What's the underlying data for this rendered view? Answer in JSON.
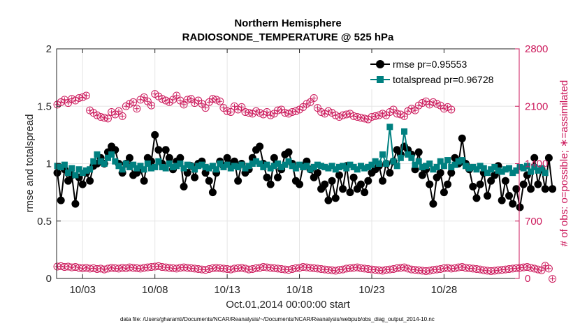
{
  "chart_data": {
    "type": "line",
    "title": "Northern Hemisphere",
    "subtitle": "RADIOSONDE_TEMPERATURE @ 525 hPa",
    "xlabel": "Oct.01,2014 00:00:00 start",
    "ylabel": "rmse and totalspread",
    "ylabel_right": "# of obs: o=possible; ∗=assimilated",
    "footnote": "data file: /Users/gharamti/Documents/NCAR/Reanalysis/~/Documents/NCAR/Reanalysis/webpub/obs_diag_output_2014-10.nc",
    "xlim": [
      1.2,
      33.2
    ],
    "ylim": [
      0,
      2
    ],
    "ylim_right": [
      0,
      2800
    ],
    "x_ticks": [
      3,
      8,
      13,
      18,
      23,
      28
    ],
    "x_tick_labels": [
      "10/03",
      "10/08",
      "10/13",
      "10/18",
      "10/23",
      "10/28"
    ],
    "y_ticks": [
      0,
      0.5,
      1,
      1.5,
      2
    ],
    "y_tick_labels": [
      "0",
      "0.5",
      "1",
      "1.5",
      "2"
    ],
    "y_right_ticks": [
      0,
      700,
      1400,
      2100,
      2800
    ],
    "y_right_tick_labels": [
      "0",
      "700",
      "1400",
      "2100",
      "2800"
    ],
    "grid": true,
    "legend_position": "top-right",
    "colors": {
      "rmse": "#000000",
      "totalspread": "#008080",
      "obs": "#cc1a5c",
      "grid": "#e5e5e5",
      "axis": "#262626"
    },
    "x_start": 1.25,
    "x_step": 0.25,
    "series": [
      {
        "name": "rmse pr=0.95553",
        "axis": "left",
        "values": [
          0.92,
          0.68,
          0.95,
          0.85,
          0.9,
          0.65,
          0.88,
          0.82,
          0.92,
          0.85,
          0.98,
          1.0,
          1.05,
          1.0,
          1.1,
          1.15,
          1.12,
          1.0,
          0.92,
          1.0,
          1.05,
          0.9,
          0.92,
          0.95,
          0.85,
          1.05,
          1.02,
          1.25,
          1.12,
          1.0,
          1.12,
          1.05,
          0.95,
          1.02,
          1.05,
          0.8,
          0.92,
          0.98,
          0.88,
          1.0,
          1.02,
          0.92,
          0.85,
          0.75,
          0.92,
          1.02,
          0.98,
          1.05,
          1.0,
          1.02,
          0.85,
          1.0,
          0.92,
          0.95,
          1.05,
          1.12,
          1.15,
          1.0,
          0.88,
          0.82,
          1.05,
          0.88,
          0.95,
          1.08,
          1.1,
          1.0,
          0.85,
          0.82,
          0.98,
          1.02,
          0.95,
          0.88,
          0.92,
          0.78,
          0.82,
          0.68,
          0.85,
          0.7,
          0.9,
          0.78,
          0.98,
          0.75,
          0.88,
          0.78,
          0.82,
          0.75,
          0.85,
          0.92,
          0.95,
          0.98,
          0.85,
          1.0,
          0.92,
          1.02,
          1.12,
          1.08,
          1.15,
          1.12,
          1.08,
          0.95,
          1.1,
          0.9,
          0.95,
          0.82,
          0.65,
          0.88,
          0.92,
          0.75,
          0.82,
          0.92,
          1.05,
          1.0,
          1.22,
          1.0,
          0.95,
          0.8,
          0.7,
          0.82,
          0.92,
          0.72,
          0.85,
          0.9,
          0.98,
          0.68,
          0.85,
          0.72,
          0.65,
          0.78,
          0.62,
          0.82,
          0.9,
          0.78,
          1.05,
          0.82,
          0.95,
          0.78,
          1.05,
          0.78
        ]
      },
      {
        "name": "totalspread pr=0.96728",
        "axis": "left",
        "values": [
          0.98,
          0.97,
          0.99,
          0.92,
          0.96,
          0.9,
          0.95,
          0.92,
          0.94,
          0.95,
          1.02,
          1.08,
          1.02,
          1.0,
          1.05,
          1.08,
          1.02,
          0.98,
          0.95,
          1.0,
          0.97,
          0.99,
          0.96,
          0.98,
          0.95,
          1.0,
          0.96,
          0.97,
          1.02,
          0.97,
          0.96,
          1.0,
          0.97,
          0.98,
          1.0,
          0.96,
          0.99,
          0.98,
          0.95,
          0.98,
          0.99,
          0.97,
          0.96,
          0.98,
          0.95,
          1.0,
          0.97,
          0.99,
          0.96,
          0.98,
          0.97,
          0.99,
          0.96,
          0.98,
          1.0,
          1.02,
          1.0,
          0.97,
          0.99,
          0.96,
          0.98,
          1.0,
          0.97,
          0.99,
          1.02,
          0.98,
          0.96,
          0.99,
          0.97,
          0.98,
          0.95,
          0.97,
          0.99,
          0.98,
          0.97,
          0.96,
          0.98,
          0.95,
          0.97,
          0.98,
          0.96,
          0.99,
          0.97,
          0.95,
          0.98,
          0.96,
          0.97,
          0.99,
          1.02,
          1.0,
          1.08,
          1.0,
          1.32,
          1.02,
          0.98,
          1.05,
          1.28,
          1.08,
          1.05,
          0.99,
          1.02,
          0.97,
          0.98,
          1.0,
          0.95,
          0.97,
          1.02,
          0.98,
          1.03,
          0.97,
          0.99,
          1.02,
          1.03,
          0.98,
          0.96,
          0.97,
          0.95,
          0.98,
          0.96,
          0.92,
          0.95,
          0.97,
          0.94,
          0.93,
          0.95,
          0.96,
          0.92,
          0.94,
          0.97,
          0.96,
          0.98,
          0.93,
          0.97,
          0.94,
          0.96,
          0.92
        ]
      },
      {
        "name": "possible (o)",
        "axis": "right",
        "values": [
          2120,
          2150,
          2180,
          2140,
          2190,
          2170,
          2200,
          2210,
          2230,
          2050,
          2020,
          1990,
          1970,
          1960,
          1950,
          2030,
          2000,
          2040,
          1980,
          2100,
          2130,
          2150,
          2070,
          2180,
          2210,
          2160,
          2110,
          2250,
          2220,
          2190,
          2170,
          2150,
          2180,
          2230,
          2170,
          2120,
          2180,
          2190,
          2140,
          2170,
          2130,
          2080,
          2150,
          2190,
          2180,
          2160,
          2080,
          2040,
          2030,
          2100,
          2060,
          2090,
          2030,
          2020,
          2010,
          2040,
          2020,
          2000,
          2030,
          1990,
          2010,
          2050,
          2060,
          2020,
          2010,
          2030,
          2040,
          2060,
          2090,
          2130,
          2150,
          2200,
          2080,
          2030,
          2010,
          2040,
          2020,
          1990,
          1970,
          1990,
          2000,
          2010,
          1980,
          1970,
          1960,
          1950,
          1940,
          1970,
          1980,
          1990,
          2010,
          1990,
          2030,
          2060,
          2010,
          2000,
          1980,
          2040,
          2070,
          2050,
          2110,
          2140,
          2160,
          2120,
          2150,
          2130,
          2110,
          2070,
          2090,
          2060
        ]
      },
      {
        "name": "assimilated (*)",
        "axis": "right",
        "values": [
          145,
          150,
          140,
          145,
          135,
          140,
          130,
          125,
          130,
          120,
          125,
          115,
          120,
          110,
          120,
          130,
          125,
          120,
          130,
          125,
          135,
          130,
          125,
          120,
          130,
          135,
          140,
          145,
          150,
          140,
          135,
          130,
          125,
          120,
          130,
          135,
          130,
          125,
          120,
          115,
          110,
          105,
          115,
          125,
          130,
          125,
          120,
          115,
          110,
          120,
          125,
          130,
          120,
          110,
          115,
          125,
          130,
          140,
          135,
          130,
          125,
          120,
          115,
          110,
          105,
          115,
          125,
          130,
          140,
          135,
          130,
          125,
          120,
          115,
          110,
          105,
          100,
          95,
          105,
          110,
          120,
          125,
          130,
          135,
          125,
          120,
          115,
          110,
          105,
          100,
          95,
          105,
          110,
          115,
          125,
          130,
          135,
          120,
          110,
          105,
          100,
          95,
          90,
          95,
          105,
          110,
          115,
          125,
          130,
          120,
          125,
          135,
          140,
          130,
          125,
          120,
          115,
          110,
          100,
          95,
          90,
          95,
          100,
          105,
          110,
          115,
          120,
          125,
          130,
          135,
          140,
          130,
          120,
          110,
          100,
          155,
          120,
          -5
        ]
      }
    ]
  }
}
